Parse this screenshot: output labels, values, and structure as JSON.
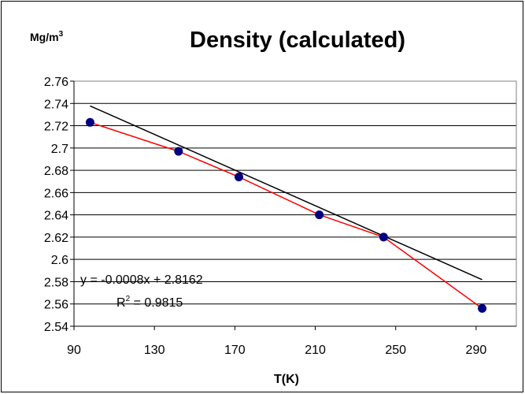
{
  "chart_data": {
    "type": "scatter",
    "title": "Density (calculated)",
    "unit_label": "Mg/m",
    "unit_superscript": "3",
    "xlabel": "T(K)",
    "ylabel": "",
    "xlim": [
      90,
      310
    ],
    "ylim": [
      2.54,
      2.76
    ],
    "xticks": [
      90,
      130,
      170,
      210,
      250,
      290
    ],
    "yticks": [
      2.54,
      2.56,
      2.58,
      2.6,
      2.62,
      2.64,
      2.66,
      2.68,
      2.7,
      2.72,
      2.74,
      2.76
    ],
    "ytick_labels": [
      "2.54",
      "2.56",
      "2.58",
      "2.6",
      "2.62",
      "2.64",
      "2.66",
      "2.68",
      "2.7",
      "2.72",
      "2.74",
      "2.76"
    ],
    "grid": "horizontal",
    "series": [
      {
        "x": [
          98,
          142,
          172,
          212,
          244,
          293
        ],
        "y": [
          2.723,
          2.697,
          2.674,
          2.64,
          2.62,
          2.556
        ],
        "marker_color": "#000080",
        "line_color": "#ff0000"
      }
    ],
    "trendline": {
      "slope": -0.0008,
      "intercept": 2.8162,
      "x_range": [
        98,
        293
      ],
      "color": "#000000",
      "equation": "y = -0.0008x + 2.8162",
      "r2_prefix": "R",
      "r2_sup": "2",
      "r2_suffix": " = 0.9815"
    }
  }
}
